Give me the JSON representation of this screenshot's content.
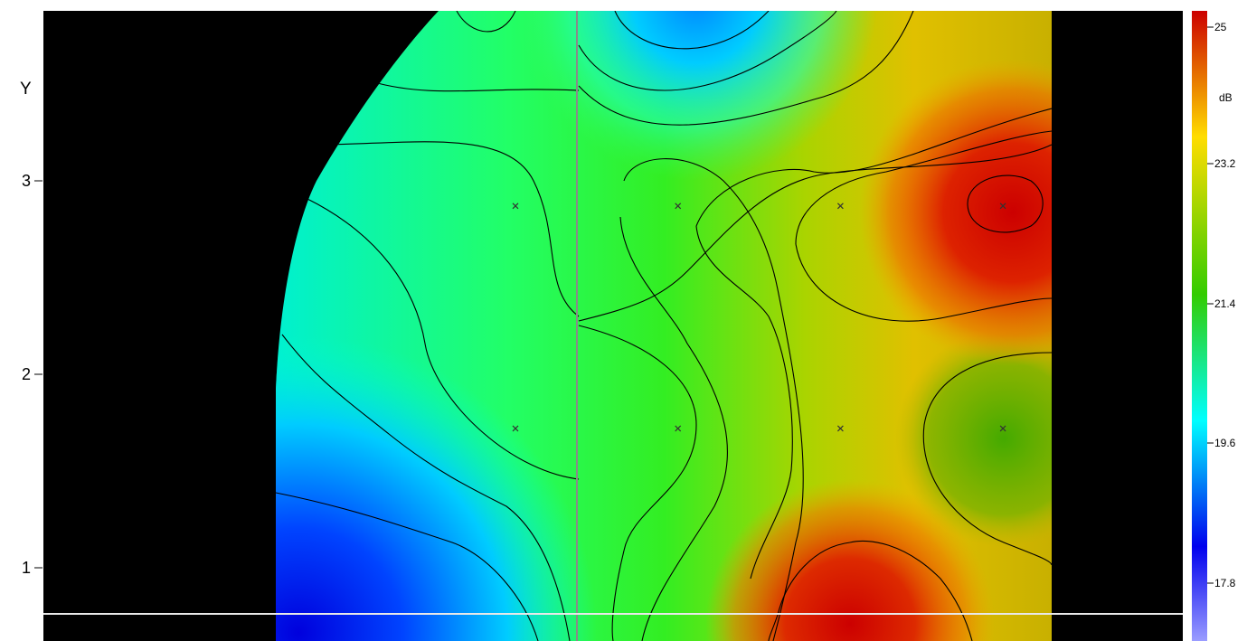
{
  "chart_data": {
    "type": "heatmap",
    "ylabel": "Y",
    "yticks": [
      "1",
      "2",
      "3"
    ],
    "ylim": [
      0.75,
      3.95
    ],
    "colorbar": {
      "unit": "dB",
      "ticks": [
        "25",
        "23.2",
        "21.4",
        "19.6",
        "17.8"
      ],
      "colors": [
        "#cc0000",
        "#ffdd00",
        "#33cc00",
        "#00ffff",
        "#0000ee",
        "#9a9cff"
      ]
    },
    "measurement_points": [
      {
        "x": 1,
        "y": 2.87
      },
      {
        "x": 2,
        "y": 2.87
      },
      {
        "x": 3,
        "y": 2.87
      },
      {
        "x": 4,
        "y": 2.87
      },
      {
        "x": 1,
        "y": 1.72
      },
      {
        "x": 2,
        "y": 1.72
      },
      {
        "x": 3,
        "y": 1.72
      },
      {
        "x": 4,
        "y": 1.72
      }
    ],
    "cursor": {
      "vertical": "gray",
      "horizontal": "white"
    }
  }
}
